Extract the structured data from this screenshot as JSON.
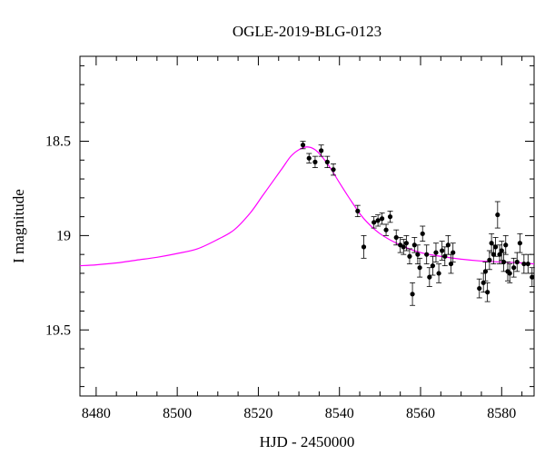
{
  "chart_data": {
    "type": "scatter",
    "title": "OGLE-2019-BLG-0123",
    "xlabel": "HJD - 2450000",
    "ylabel": "I magnitude",
    "xlim": [
      8476,
      8588
    ],
    "ylim": [
      19.85,
      18.05
    ],
    "y_inverted": true,
    "x_ticks": [
      8480,
      8500,
      8520,
      8540,
      8560,
      8580
    ],
    "y_ticks": [
      18.5,
      19,
      19.5
    ],
    "x_tick_labels": [
      "8480",
      "8500",
      "8520",
      "8540",
      "8560",
      "8580"
    ],
    "y_tick_labels": [
      "18.5",
      "19",
      "19.5"
    ],
    "grid": false,
    "colors": {
      "points": "#000000",
      "model": "#ff00ff",
      "frame": "#000000"
    },
    "series": [
      {
        "kind": "points",
        "x": [
          8531,
          8532.5,
          8534,
          8535.5,
          8537,
          8538.5,
          8544.5,
          8546,
          8548.5,
          8549.5,
          8550.5,
          8551.5,
          8552.5,
          8554,
          8555,
          8555.8,
          8556.5,
          8557.3,
          8558,
          8558.5,
          8559.3,
          8559.8,
          8560.5,
          8561.5,
          8562.2,
          8563,
          8563.8,
          8564.5,
          8565.3,
          8566,
          8566.8,
          8567.5,
          8568,
          8574.5,
          8575.5,
          8576,
          8576.5,
          8577,
          8577.5,
          8578,
          8578.5,
          8579,
          8579.5,
          8580,
          8580.5,
          8581,
          8581.5,
          8582,
          8583,
          8583.8,
          8584.5,
          8585.5,
          8586.5,
          8587.5
        ],
        "y": [
          18.52,
          18.59,
          18.61,
          18.55,
          18.61,
          18.65,
          18.87,
          19.06,
          18.93,
          18.92,
          18.91,
          18.97,
          18.9,
          19.01,
          19.05,
          19.06,
          19.04,
          19.11,
          19.31,
          19.05,
          19.1,
          19.17,
          18.99,
          19.1,
          19.22,
          19.16,
          19.09,
          19.2,
          19.08,
          19.11,
          19.05,
          19.15,
          19.09,
          19.28,
          19.25,
          19.19,
          19.3,
          19.13,
          19.04,
          19.1,
          19.06,
          18.89,
          19.1,
          19.08,
          19.14,
          19.05,
          19.19,
          19.2,
          19.17,
          19.14,
          19.04,
          19.15,
          19.15,
          19.22
        ],
        "err": [
          0.02,
          0.025,
          0.03,
          0.03,
          0.03,
          0.03,
          0.03,
          0.06,
          0.03,
          0.03,
          0.03,
          0.03,
          0.03,
          0.04,
          0.04,
          0.04,
          0.04,
          0.04,
          0.06,
          0.04,
          0.05,
          0.05,
          0.04,
          0.05,
          0.05,
          0.05,
          0.05,
          0.05,
          0.05,
          0.05,
          0.05,
          0.05,
          0.05,
          0.05,
          0.05,
          0.05,
          0.05,
          0.05,
          0.05,
          0.05,
          0.05,
          0.07,
          0.05,
          0.05,
          0.05,
          0.05,
          0.05,
          0.05,
          0.05,
          0.05,
          0.05,
          0.05,
          0.05,
          0.05
        ]
      },
      {
        "kind": "model",
        "x": [
          8476,
          8480,
          8485,
          8490,
          8495,
          8500,
          8505,
          8510,
          8514,
          8518,
          8521,
          8524,
          8526,
          8528,
          8530,
          8532,
          8534,
          8536,
          8538,
          8540,
          8543,
          8546,
          8550,
          8555,
          8560,
          8565,
          8570,
          8575,
          8580,
          8585,
          8588
        ],
        "y": [
          19.16,
          19.155,
          19.145,
          19.13,
          19.115,
          19.095,
          19.07,
          19.02,
          18.97,
          18.88,
          18.79,
          18.7,
          18.64,
          18.58,
          18.545,
          18.53,
          18.545,
          18.59,
          18.65,
          18.72,
          18.82,
          18.91,
          18.99,
          19.05,
          19.09,
          19.11,
          19.125,
          19.135,
          19.14,
          19.145,
          19.15
        ]
      }
    ]
  }
}
